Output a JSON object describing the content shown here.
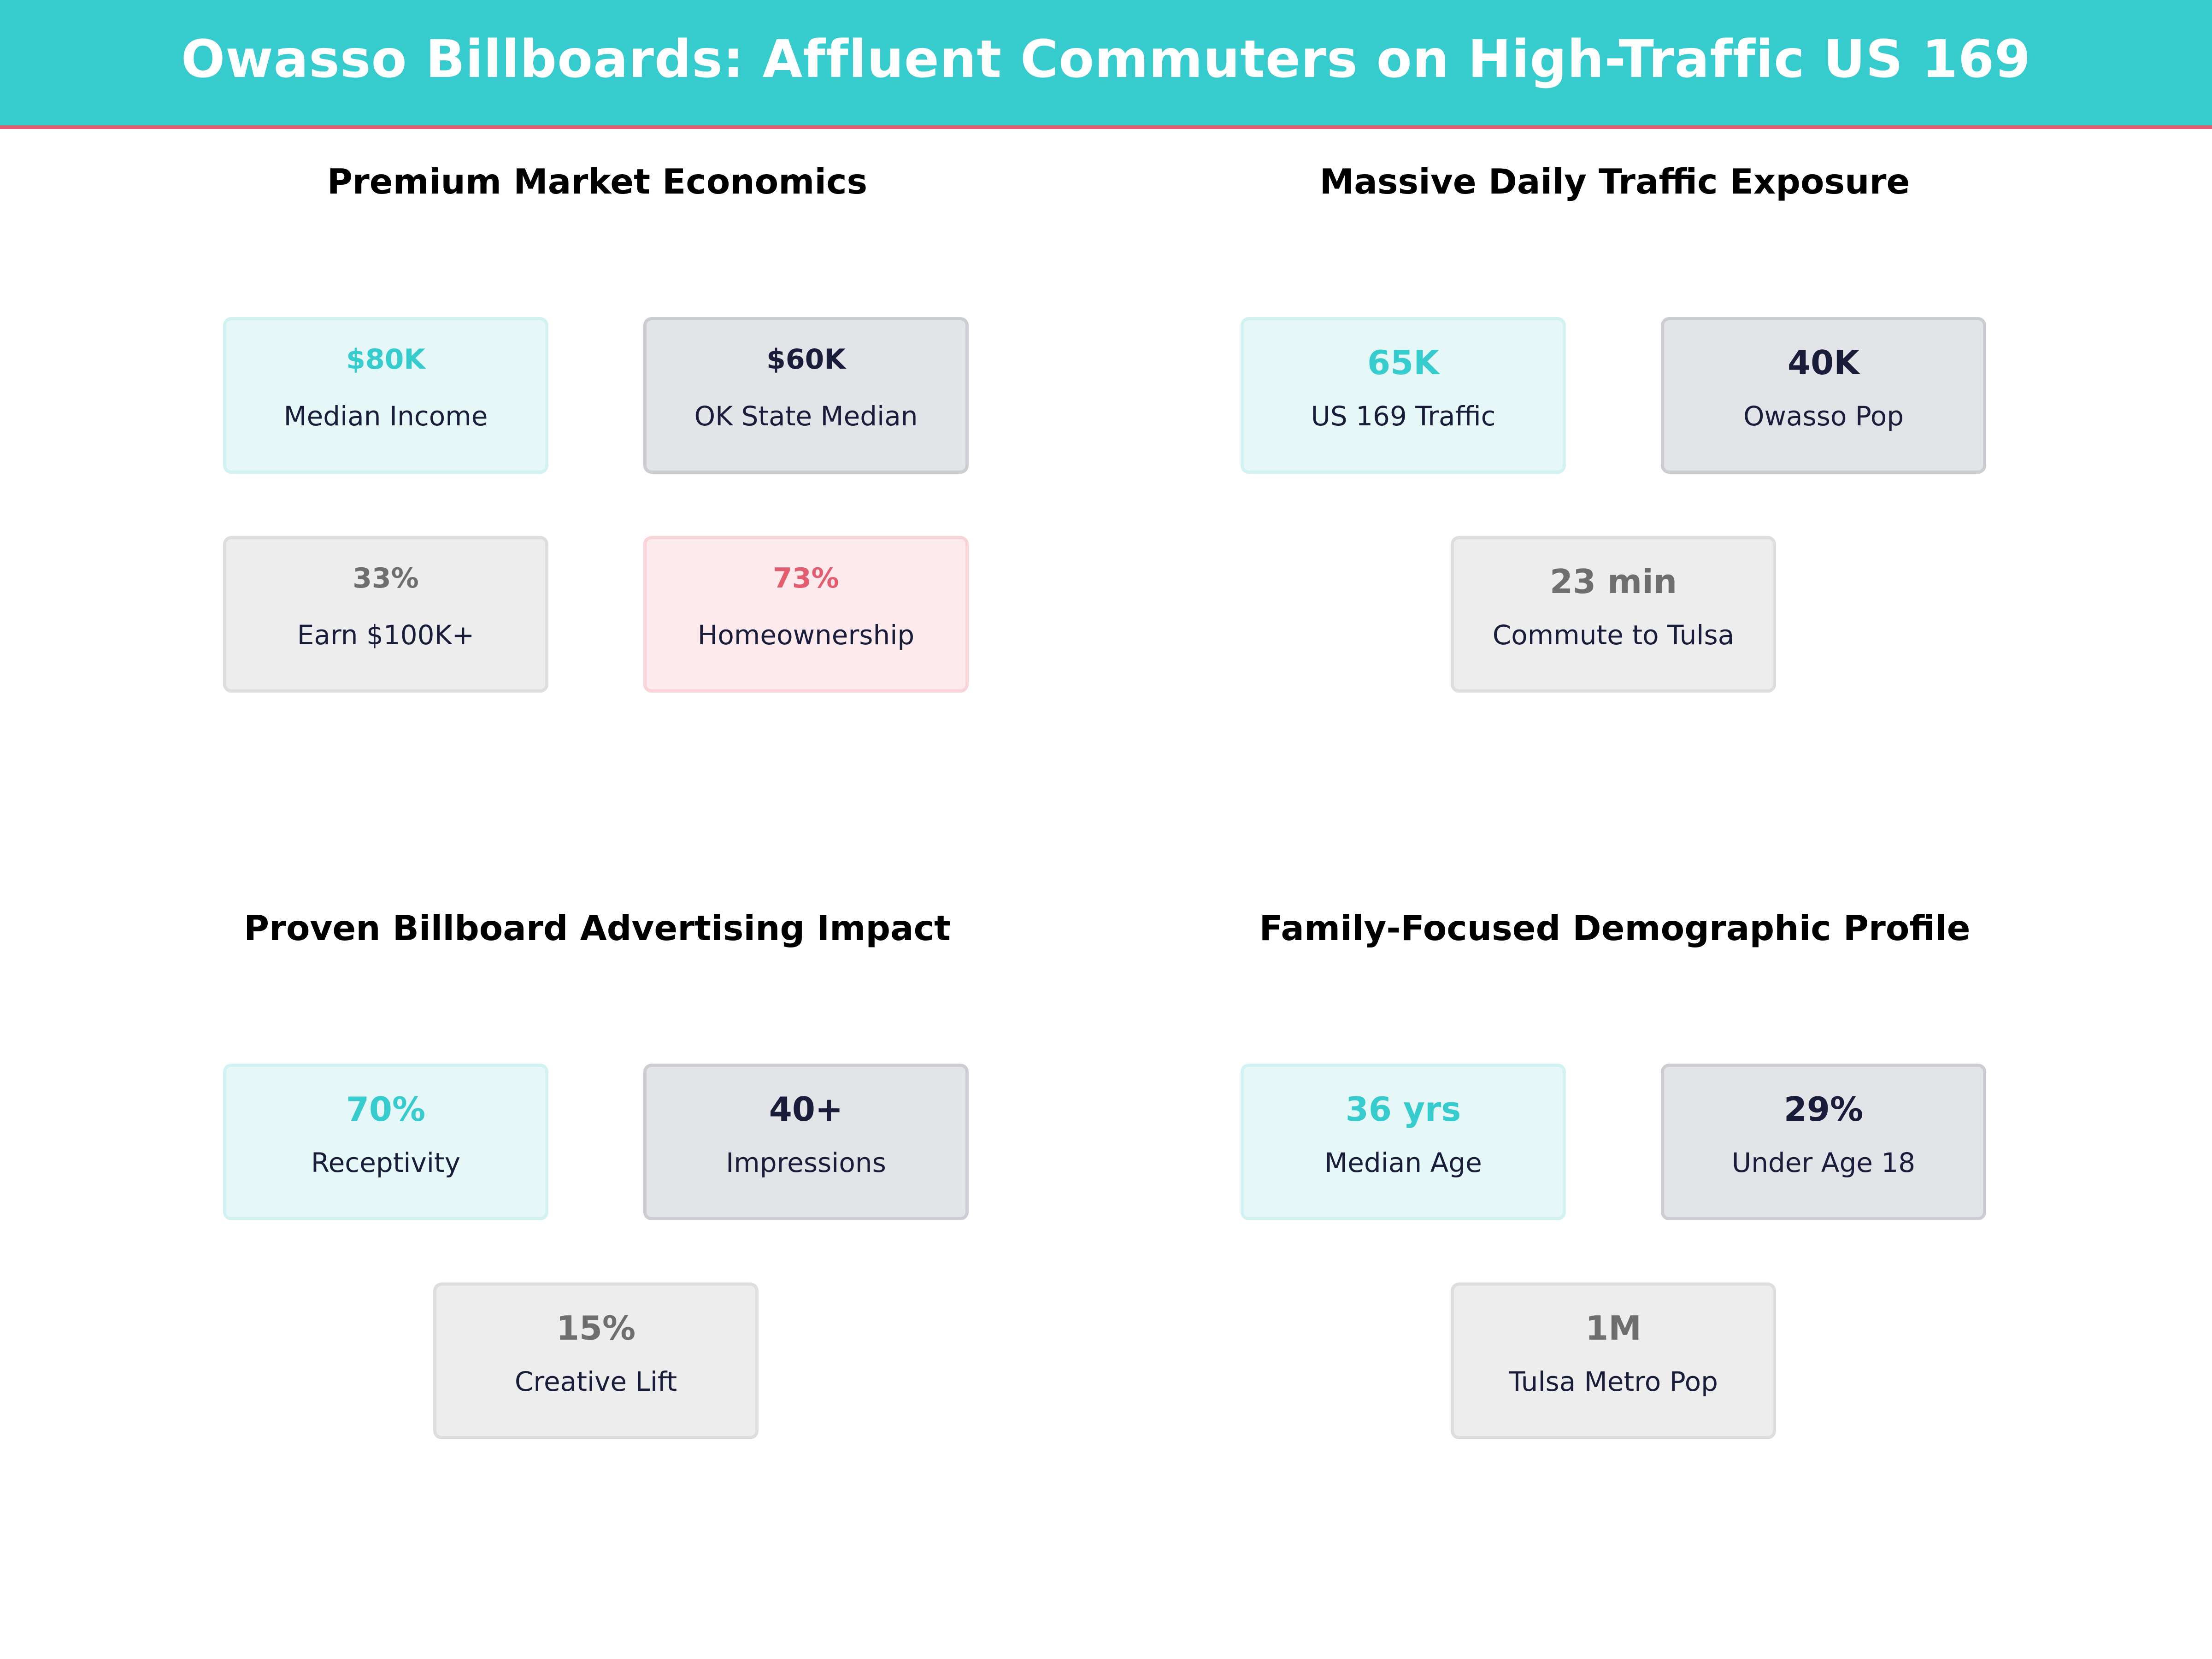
{
  "header": {
    "title": "Owasso Billboards: Affluent Commuters on High-Traffic US 169"
  },
  "colors": {
    "accent_teal": "#36cccd",
    "accent_pink": "#e25d6f",
    "navy": "#1a1d3a",
    "gray": "#6e6e6e"
  },
  "sections": [
    {
      "title": "Premium Market Economics",
      "cards": [
        {
          "value": "$80K",
          "label": "Median Income",
          "style": "teal"
        },
        {
          "value": "$60K",
          "label": "OK State Median",
          "style": "navy"
        },
        {
          "value": "33%",
          "label": "Earn $100K+",
          "style": "gray"
        },
        {
          "value": "73%",
          "label": "Homeownership",
          "style": "pink"
        }
      ]
    },
    {
      "title": "Massive Daily Traffic Exposure",
      "cards": [
        {
          "value": "65K",
          "label": "US 169 Traffic",
          "style": "teal"
        },
        {
          "value": "40K",
          "label": "Owasso Pop",
          "style": "navy"
        },
        {
          "value": "23 min",
          "label": "Commute to Tulsa",
          "style": "gray"
        }
      ]
    },
    {
      "title": "Proven Billboard Advertising Impact",
      "cards": [
        {
          "value": "70%",
          "label": "Receptivity",
          "style": "teal"
        },
        {
          "value": "40+",
          "label": "Impressions",
          "style": "navy"
        },
        {
          "value": "15%",
          "label": "Creative Lift",
          "style": "gray"
        }
      ]
    },
    {
      "title": "Family-Focused Demographic Profile",
      "cards": [
        {
          "value": "36 yrs",
          "label": "Median Age",
          "style": "teal"
        },
        {
          "value": "29%",
          "label": "Under Age 18",
          "style": "navy"
        },
        {
          "value": "1M",
          "label": "Tulsa Metro Pop",
          "style": "gray"
        }
      ]
    }
  ]
}
